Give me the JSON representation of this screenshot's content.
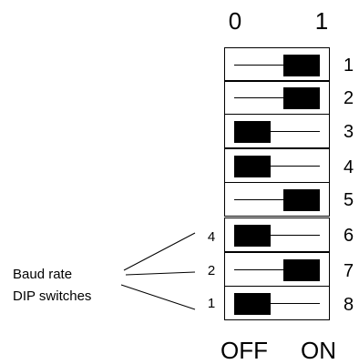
{
  "header": {
    "off_digit": "0",
    "on_digit": "1"
  },
  "footer": {
    "off_label": "OFF",
    "on_label": "ON"
  },
  "switches": [
    {
      "number": "1",
      "state": "on"
    },
    {
      "number": "2",
      "state": "on"
    },
    {
      "number": "3",
      "state": "off"
    },
    {
      "number": "4",
      "state": "off"
    },
    {
      "number": "5",
      "state": "on"
    },
    {
      "number": "6",
      "state": "off"
    },
    {
      "number": "7",
      "state": "on"
    },
    {
      "number": "8",
      "state": "off"
    }
  ],
  "baud_bits": [
    {
      "label": "4",
      "switch": "6"
    },
    {
      "label": "2",
      "switch": "7"
    },
    {
      "label": "1",
      "switch": "8"
    }
  ],
  "callout": {
    "line1": "Baud rate",
    "line2": "DIP switches"
  }
}
